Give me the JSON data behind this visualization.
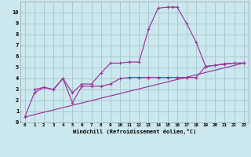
{
  "bg_color": "#cce8ef",
  "grid_color": "#a8c8d0",
  "line_color": "#993399",
  "xlim": [
    -0.5,
    23.5
  ],
  "ylim": [
    0,
    11
  ],
  "xticks": [
    0,
    1,
    2,
    3,
    4,
    5,
    6,
    7,
    8,
    9,
    10,
    11,
    12,
    13,
    14,
    15,
    16,
    17,
    18,
    19,
    20,
    21,
    22,
    23
  ],
  "yticks": [
    0,
    1,
    2,
    3,
    4,
    5,
    6,
    7,
    8,
    9,
    10
  ],
  "xlabel": "Windchill (Refroidissement éolien,°C)",
  "line1_x": [
    0,
    1,
    2,
    3,
    4,
    5,
    6,
    7,
    8,
    9,
    10,
    11,
    12,
    13,
    14,
    15,
    16,
    17,
    18,
    19,
    20,
    21,
    22,
    23
  ],
  "line1_y": [
    0.5,
    2.7,
    3.2,
    3.0,
    4.0,
    1.8,
    3.3,
    3.3,
    3.3,
    3.5,
    4.0,
    4.1,
    4.1,
    4.1,
    4.1,
    4.1,
    4.1,
    4.1,
    4.1,
    5.1,
    5.2,
    5.3,
    5.4,
    5.4
  ],
  "line2_x": [
    1,
    2,
    3,
    4,
    5,
    6,
    7,
    8,
    9,
    10,
    11,
    12,
    13,
    14,
    15,
    15.5,
    16,
    17,
    18,
    19,
    20,
    21,
    22,
    23
  ],
  "line2_y": [
    3.0,
    3.2,
    3.0,
    4.0,
    2.7,
    3.5,
    3.5,
    4.5,
    5.4,
    5.4,
    5.5,
    5.5,
    8.5,
    10.4,
    10.5,
    10.5,
    10.5,
    9.0,
    7.3,
    5.1,
    5.2,
    5.35,
    5.4,
    5.4
  ],
  "line3_x": [
    0,
    23
  ],
  "line3_y": [
    0.5,
    5.4
  ]
}
